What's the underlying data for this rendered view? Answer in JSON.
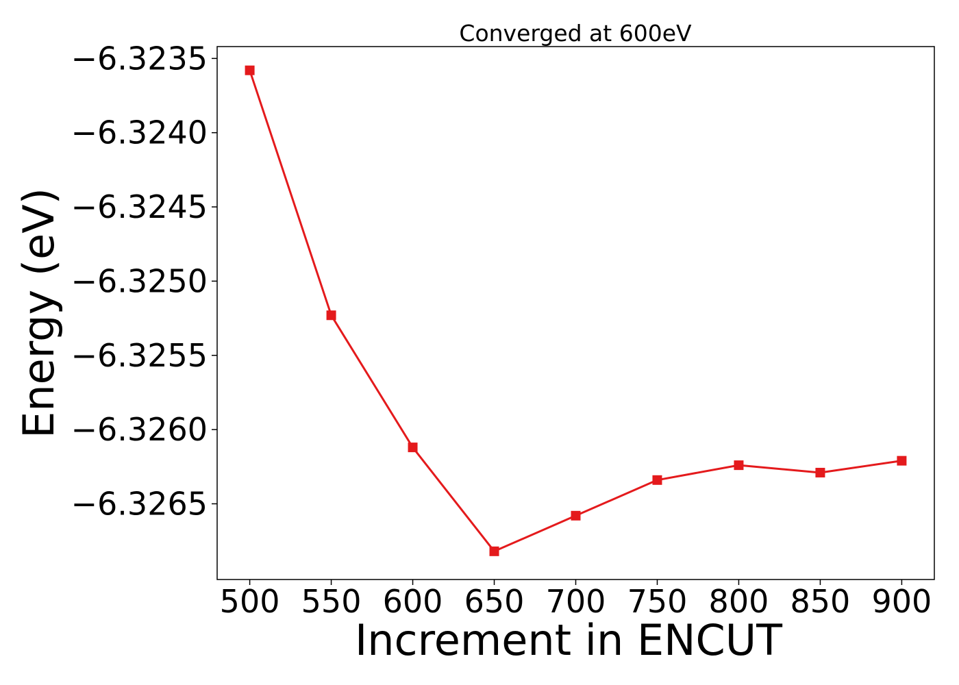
{
  "chart_data": {
    "type": "line",
    "title": "Converged at 600eV",
    "xlabel": "Increment in ENCUT",
    "ylabel": "Energy (eV)",
    "x": [
      500,
      550,
      600,
      650,
      700,
      750,
      800,
      850,
      900
    ],
    "series": [
      {
        "values": [
          -6.32358,
          -6.32523,
          -6.32612,
          -6.32682,
          -6.32658,
          -6.32634,
          -6.32624,
          -6.32629,
          -6.32621
        ],
        "color": "#e41a1c",
        "marker": "square"
      }
    ],
    "xticks": [
      500,
      550,
      600,
      650,
      700,
      750,
      800,
      850,
      900
    ],
    "yticks": [
      -6.3235,
      -6.324,
      -6.3245,
      -6.325,
      -6.3255,
      -6.326,
      -6.3265
    ],
    "ytick_labels": [
      "−6.3235",
      "−6.3240",
      "−6.3245",
      "−6.3250",
      "−6.3255",
      "−6.3260",
      "−6.3265"
    ],
    "xlim": [
      480,
      920
    ],
    "ylim": [
      -6.32701,
      -6.32342
    ],
    "grid": false,
    "legend": "none"
  }
}
